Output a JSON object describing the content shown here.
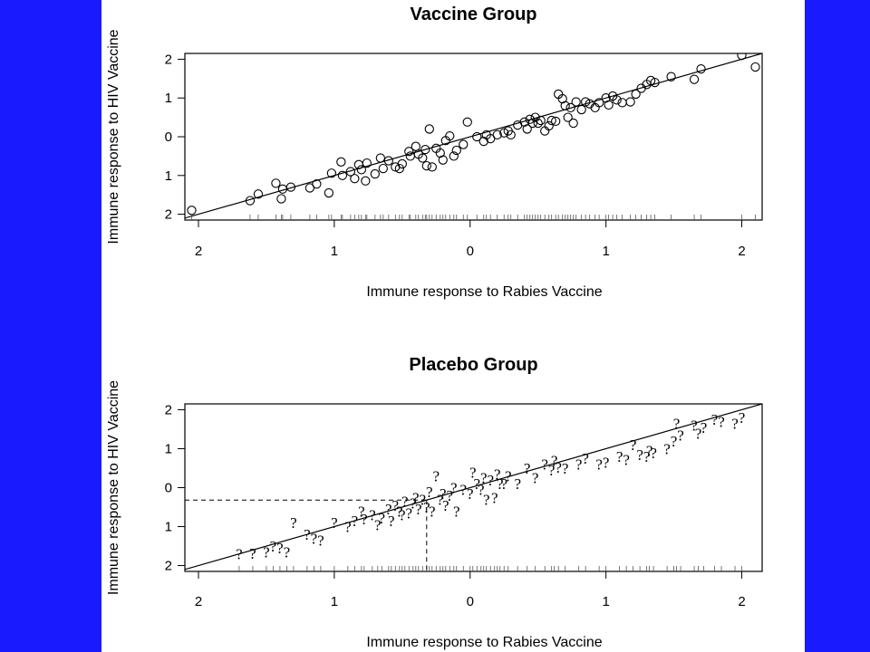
{
  "colors": {
    "background": "#1a1aff",
    "panel": "#ffffff",
    "ink": "#000000"
  },
  "chart_data": [
    {
      "type": "scatter",
      "marker": "circle",
      "title": "Vaccine  Group",
      "xlabel": "Immune response to Rabies Vaccine",
      "ylabel": "Immune response to HIV Vaccine",
      "xlim": [
        -2.1,
        2.15
      ],
      "ylim": [
        -2.15,
        2.15
      ],
      "x_ticks": [
        -2,
        -1,
        0,
        1,
        2
      ],
      "x_tick_labels": [
        "2",
        "1",
        "0",
        "1",
        "2"
      ],
      "y_ticks": [
        2,
        1,
        0,
        -1,
        -2
      ],
      "y_tick_labels": [
        "2",
        "1",
        "0",
        "1",
        "2"
      ],
      "fit_line": {
        "slope": 1.0,
        "intercept": 0.0
      },
      "rug": true,
      "grid": false,
      "points": [
        [
          -2.05,
          -1.9
        ],
        [
          -1.62,
          -1.65
        ],
        [
          -1.56,
          -1.48
        ],
        [
          -1.43,
          -1.2
        ],
        [
          -1.38,
          -1.35
        ],
        [
          -1.39,
          -1.6
        ],
        [
          -1.32,
          -1.3
        ],
        [
          -1.18,
          -1.32
        ],
        [
          -1.13,
          -1.22
        ],
        [
          -1.04,
          -1.45
        ],
        [
          -1.02,
          -0.94
        ],
        [
          -0.95,
          -0.65
        ],
        [
          -0.94,
          -1.0
        ],
        [
          -0.88,
          -0.9
        ],
        [
          -0.85,
          -1.08
        ],
        [
          -0.82,
          -0.72
        ],
        [
          -0.8,
          -0.85
        ],
        [
          -0.77,
          -1.14
        ],
        [
          -0.76,
          -0.68
        ],
        [
          -0.7,
          -0.96
        ],
        [
          -0.66,
          -0.55
        ],
        [
          -0.64,
          -0.82
        ],
        [
          -0.6,
          -0.62
        ],
        [
          -0.55,
          -0.78
        ],
        [
          -0.52,
          -0.82
        ],
        [
          -0.5,
          -0.7
        ],
        [
          -0.45,
          -0.38
        ],
        [
          -0.44,
          -0.5
        ],
        [
          -0.4,
          -0.25
        ],
        [
          -0.38,
          -0.45
        ],
        [
          -0.35,
          -0.55
        ],
        [
          -0.33,
          -0.33
        ],
        [
          -0.32,
          -0.75
        ],
        [
          -0.3,
          0.2
        ],
        [
          -0.28,
          -0.78
        ],
        [
          -0.25,
          -0.3
        ],
        [
          -0.22,
          -0.42
        ],
        [
          -0.2,
          -0.6
        ],
        [
          -0.18,
          -0.1
        ],
        [
          -0.15,
          0.02
        ],
        [
          -0.12,
          -0.5
        ],
        [
          -0.1,
          -0.35
        ],
        [
          -0.05,
          -0.2
        ],
        [
          -0.02,
          0.38
        ],
        [
          0.05,
          0.0
        ],
        [
          0.1,
          -0.12
        ],
        [
          0.12,
          0.05
        ],
        [
          0.15,
          -0.05
        ],
        [
          0.2,
          0.05
        ],
        [
          0.25,
          0.1
        ],
        [
          0.28,
          0.15
        ],
        [
          0.3,
          0.05
        ],
        [
          0.35,
          0.3
        ],
        [
          0.4,
          0.38
        ],
        [
          0.42,
          0.2
        ],
        [
          0.44,
          0.45
        ],
        [
          0.46,
          0.35
        ],
        [
          0.48,
          0.5
        ],
        [
          0.5,
          0.35
        ],
        [
          0.52,
          0.42
        ],
        [
          0.55,
          0.15
        ],
        [
          0.58,
          0.28
        ],
        [
          0.6,
          0.42
        ],
        [
          0.63,
          0.4
        ],
        [
          0.65,
          1.1
        ],
        [
          0.68,
          0.98
        ],
        [
          0.7,
          0.8
        ],
        [
          0.72,
          0.5
        ],
        [
          0.74,
          0.75
        ],
        [
          0.76,
          0.35
        ],
        [
          0.78,
          0.9
        ],
        [
          0.82,
          0.7
        ],
        [
          0.85,
          0.9
        ],
        [
          0.88,
          0.85
        ],
        [
          0.92,
          0.75
        ],
        [
          0.95,
          0.88
        ],
        [
          1.0,
          1.0
        ],
        [
          1.02,
          0.82
        ],
        [
          1.05,
          1.05
        ],
        [
          1.08,
          0.95
        ],
        [
          1.12,
          0.88
        ],
        [
          1.18,
          0.9
        ],
        [
          1.22,
          1.1
        ],
        [
          1.26,
          1.25
        ],
        [
          1.3,
          1.35
        ],
        [
          1.33,
          1.45
        ],
        [
          1.36,
          1.4
        ],
        [
          1.48,
          1.55
        ],
        [
          1.65,
          1.48
        ],
        [
          1.7,
          1.75
        ],
        [
          2.0,
          2.1
        ],
        [
          2.1,
          1.8
        ]
      ]
    },
    {
      "type": "scatter",
      "marker": "?",
      "title": "Placebo  Group",
      "xlabel": "Immune response to Rabies Vaccine",
      "ylabel": "Immune response to HIV Vaccine",
      "xlim": [
        -2.1,
        2.15
      ],
      "ylim": [
        -2.15,
        2.15
      ],
      "x_ticks": [
        -2,
        -1,
        0,
        1,
        2
      ],
      "x_tick_labels": [
        "2",
        "1",
        "0",
        "1",
        "2"
      ],
      "y_ticks": [
        2,
        1,
        0,
        -1,
        -2
      ],
      "y_tick_labels": [
        "2",
        "1",
        "0",
        "1",
        "2"
      ],
      "fit_line": {
        "slope": 1.0,
        "intercept": 0.0
      },
      "rug": true,
      "grid": false,
      "reference": {
        "x": -0.32,
        "y": -0.32
      },
      "points": [
        [
          -1.7,
          -1.7
        ],
        [
          -1.6,
          -1.68
        ],
        [
          -1.5,
          -1.65
        ],
        [
          -1.45,
          -1.5
        ],
        [
          -1.4,
          -1.55
        ],
        [
          -1.35,
          -1.65
        ],
        [
          -1.3,
          -0.9
        ],
        [
          -1.2,
          -1.2
        ],
        [
          -1.15,
          -1.3
        ],
        [
          -1.1,
          -1.35
        ],
        [
          -1.0,
          -0.9
        ],
        [
          -0.9,
          -1.0
        ],
        [
          -0.85,
          -0.85
        ],
        [
          -0.8,
          -0.6
        ],
        [
          -0.78,
          -0.8
        ],
        [
          -0.72,
          -0.7
        ],
        [
          -0.68,
          -0.95
        ],
        [
          -0.65,
          -0.78
        ],
        [
          -0.6,
          -0.55
        ],
        [
          -0.58,
          -0.85
        ],
        [
          -0.55,
          -0.45
        ],
        [
          -0.52,
          -0.6
        ],
        [
          -0.5,
          -0.7
        ],
        [
          -0.48,
          -0.35
        ],
        [
          -0.45,
          -0.65
        ],
        [
          -0.42,
          -0.4
        ],
        [
          -0.4,
          -0.25
        ],
        [
          -0.38,
          -0.55
        ],
        [
          -0.35,
          -0.3
        ],
        [
          -0.32,
          -0.5
        ],
        [
          -0.3,
          -0.1
        ],
        [
          -0.28,
          -0.6
        ],
        [
          -0.25,
          0.3
        ],
        [
          -0.22,
          -0.3
        ],
        [
          -0.2,
          -0.15
        ],
        [
          -0.18,
          -0.45
        ],
        [
          -0.15,
          -0.2
        ],
        [
          -0.12,
          0.0
        ],
        [
          -0.1,
          -0.6
        ],
        [
          -0.05,
          -0.05
        ],
        [
          0.0,
          -0.15
        ],
        [
          0.02,
          0.4
        ],
        [
          0.05,
          0.1
        ],
        [
          0.08,
          -0.05
        ],
        [
          0.1,
          0.25
        ],
        [
          0.12,
          -0.3
        ],
        [
          0.15,
          0.2
        ],
        [
          0.18,
          -0.25
        ],
        [
          0.2,
          0.35
        ],
        [
          0.22,
          0.1
        ],
        [
          0.25,
          0.1
        ],
        [
          0.28,
          0.3
        ],
        [
          0.35,
          0.1
        ],
        [
          0.42,
          0.5
        ],
        [
          0.48,
          0.25
        ],
        [
          0.55,
          0.6
        ],
        [
          0.6,
          0.45
        ],
        [
          0.62,
          0.7
        ],
        [
          0.65,
          0.52
        ],
        [
          0.7,
          0.5
        ],
        [
          0.8,
          0.6
        ],
        [
          0.85,
          0.75
        ],
        [
          0.95,
          0.6
        ],
        [
          1.0,
          0.65
        ],
        [
          1.1,
          0.8
        ],
        [
          1.15,
          0.72
        ],
        [
          1.2,
          1.1
        ],
        [
          1.25,
          0.85
        ],
        [
          1.3,
          0.8
        ],
        [
          1.32,
          0.95
        ],
        [
          1.35,
          0.9
        ],
        [
          1.45,
          1.0
        ],
        [
          1.5,
          1.2
        ],
        [
          1.52,
          1.65
        ],
        [
          1.55,
          1.35
        ],
        [
          1.65,
          1.6
        ],
        [
          1.68,
          1.4
        ],
        [
          1.72,
          1.55
        ],
        [
          1.8,
          1.75
        ],
        [
          1.85,
          1.7
        ],
        [
          1.95,
          1.65
        ],
        [
          2.0,
          1.8
        ]
      ]
    }
  ]
}
